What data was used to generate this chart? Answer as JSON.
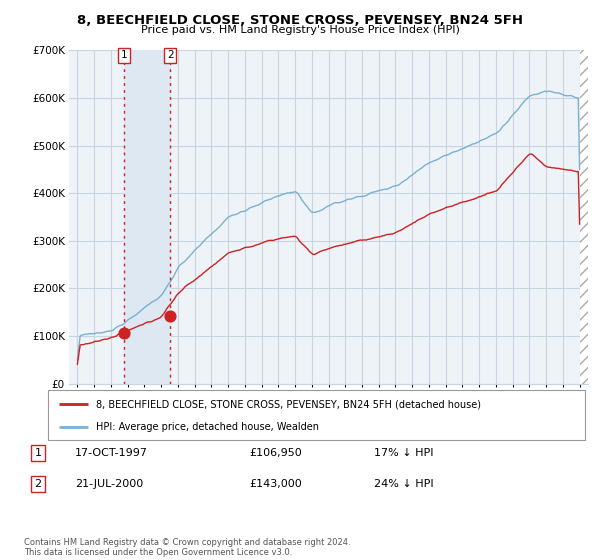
{
  "title": "8, BEECHFIELD CLOSE, STONE CROSS, PEVENSEY, BN24 5FH",
  "subtitle": "Price paid vs. HM Land Registry's House Price Index (HPI)",
  "legend_line1": "8, BEECHFIELD CLOSE, STONE CROSS, PEVENSEY, BN24 5FH (detached house)",
  "legend_line2": "HPI: Average price, detached house, Wealden",
  "transaction1_date": "17-OCT-1997",
  "transaction1_price": "£106,950",
  "transaction1_pct": "17% ↓ HPI",
  "transaction1_year": 1997.8,
  "transaction1_value": 106950,
  "transaction2_date": "21-JUL-2000",
  "transaction2_price": "£143,000",
  "transaction2_pct": "24% ↓ HPI",
  "transaction2_year": 2000.55,
  "transaction2_value": 143000,
  "hpi_color": "#7ab0d4",
  "price_color": "#cc2222",
  "vline_color": "#cc2222",
  "marker_color": "#cc2222",
  "background_color": "#eef3f8",
  "grid_color": "#c8d4e0",
  "shade_color": "#dde8f2",
  "ylim": [
    0,
    700000
  ],
  "xlim_start": 1994.5,
  "xlim_end": 2025.5,
  "footer": "Contains HM Land Registry data © Crown copyright and database right 2024.\nThis data is licensed under the Open Government Licence v3.0."
}
